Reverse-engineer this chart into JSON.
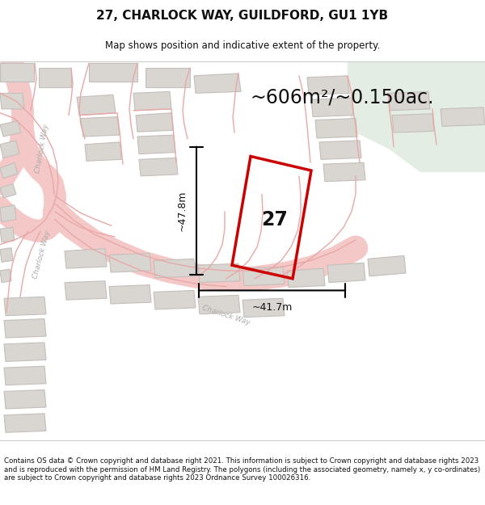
{
  "title": "27, CHARLOCK WAY, GUILDFORD, GU1 1YB",
  "subtitle": "Map shows position and indicative extent of the property.",
  "area_text": "~606m²/~0.150ac.",
  "label_27": "27",
  "dim_height": "~47.8m",
  "dim_width": "~41.7m",
  "footer": "Contains OS data © Crown copyright and database right 2021. This information is subject to Crown copyright and database rights 2023 and is reproduced with the permission of HM Land Registry. The polygons (including the associated geometry, namely x, y co-ordinates) are subject to Crown copyright and database rights 2023 Ordnance Survey 100026316.",
  "map_bg": "#f2f0ee",
  "green_color": "#e4ede4",
  "road_fill": "#f5c8c8",
  "road_edge": "#e8a0a0",
  "building_fill": "#d9d5d1",
  "building_edge": "#c4bfba",
  "plot_color": "#cc0000",
  "dim_color": "#111111",
  "title_color": "#111111",
  "subtitle_color": "#111111",
  "footer_color": "#111111",
  "separator_color": "#cccccc",
  "title_fontsize": 11,
  "subtitle_fontsize": 8.5,
  "area_fontsize": 17,
  "dim_fontsize": 9,
  "footer_fontsize": 6.2,
  "road_label_color": "#aaaaaa"
}
